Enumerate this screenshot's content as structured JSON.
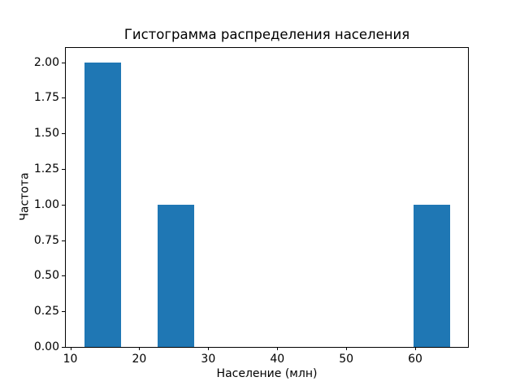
{
  "chart_data": {
    "type": "bar",
    "subtype": "histogram",
    "title": "Гистограмма распределения населения",
    "xlabel": "Население (млн)",
    "ylabel": "Частота",
    "xlim": [
      9.35,
      67.65
    ],
    "ylim": [
      0,
      2.1
    ],
    "xticks": [
      10,
      20,
      30,
      40,
      50,
      60
    ],
    "xtick_labels": [
      "10",
      "20",
      "30",
      "40",
      "50",
      "60"
    ],
    "yticks": [
      0,
      0.25,
      0.5,
      0.75,
      1.0,
      1.25,
      1.5,
      1.75,
      2.0
    ],
    "ytick_labels": [
      "0.00",
      "0.25",
      "0.50",
      "0.75",
      "1.00",
      "1.25",
      "1.50",
      "1.75",
      "2.00"
    ],
    "bars": [
      {
        "x0": 12.0,
        "x1": 17.3,
        "count": 2
      },
      {
        "x0": 22.6,
        "x1": 27.9,
        "count": 1
      },
      {
        "x0": 59.7,
        "x1": 65.0,
        "count": 1
      }
    ],
    "bar_color": "#1f77b4",
    "text_color": "#000000",
    "grid": false,
    "legend": null
  }
}
